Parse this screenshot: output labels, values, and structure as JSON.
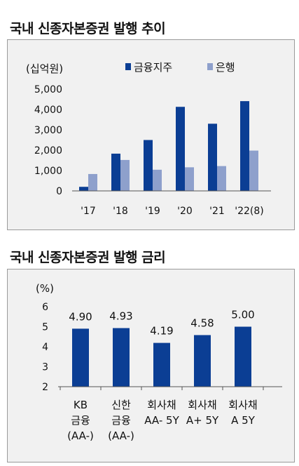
{
  "chart_data": [
    {
      "type": "bar",
      "title": "국내 신종자본증권 발행 추이",
      "unit_label": "(십억원)",
      "categories": [
        "'17",
        "'18",
        "'19",
        "'20",
        "'21",
        "'22(8)"
      ],
      "series": [
        {
          "name": "금융지주",
          "color": "#0b3e94",
          "values": [
            200,
            1830,
            2500,
            4130,
            3300,
            4410
          ]
        },
        {
          "name": "은행",
          "color": "#8ea0cc",
          "values": [
            830,
            1520,
            1040,
            1160,
            1220,
            1980
          ]
        }
      ],
      "y_ticks": [
        "5,000",
        "4,000",
        "3,000",
        "2,000",
        "1,000",
        "0"
      ],
      "ylim": [
        0,
        5000
      ],
      "legend_position": "top-right",
      "grid": false
    },
    {
      "type": "bar",
      "title": "국내 신종자본증권 발행 금리",
      "unit_label": "(%)",
      "categories": [
        [
          "KB",
          "금융",
          "(AA-)"
        ],
        [
          "신한",
          "금융",
          "(AA-)"
        ],
        [
          "회사채",
          "AA- 5Y"
        ],
        [
          "회사채",
          "A+ 5Y"
        ],
        [
          "회사채",
          "A 5Y"
        ]
      ],
      "values": [
        4.9,
        4.93,
        4.19,
        4.58,
        5.0
      ],
      "value_labels": [
        "4.90",
        "4.93",
        "4.19",
        "4.58",
        "5.00"
      ],
      "color": "#0b3e94",
      "y_ticks": [
        "6",
        "5",
        "4",
        "3",
        "2"
      ],
      "ylim": [
        2,
        6
      ],
      "grid": false
    }
  ]
}
